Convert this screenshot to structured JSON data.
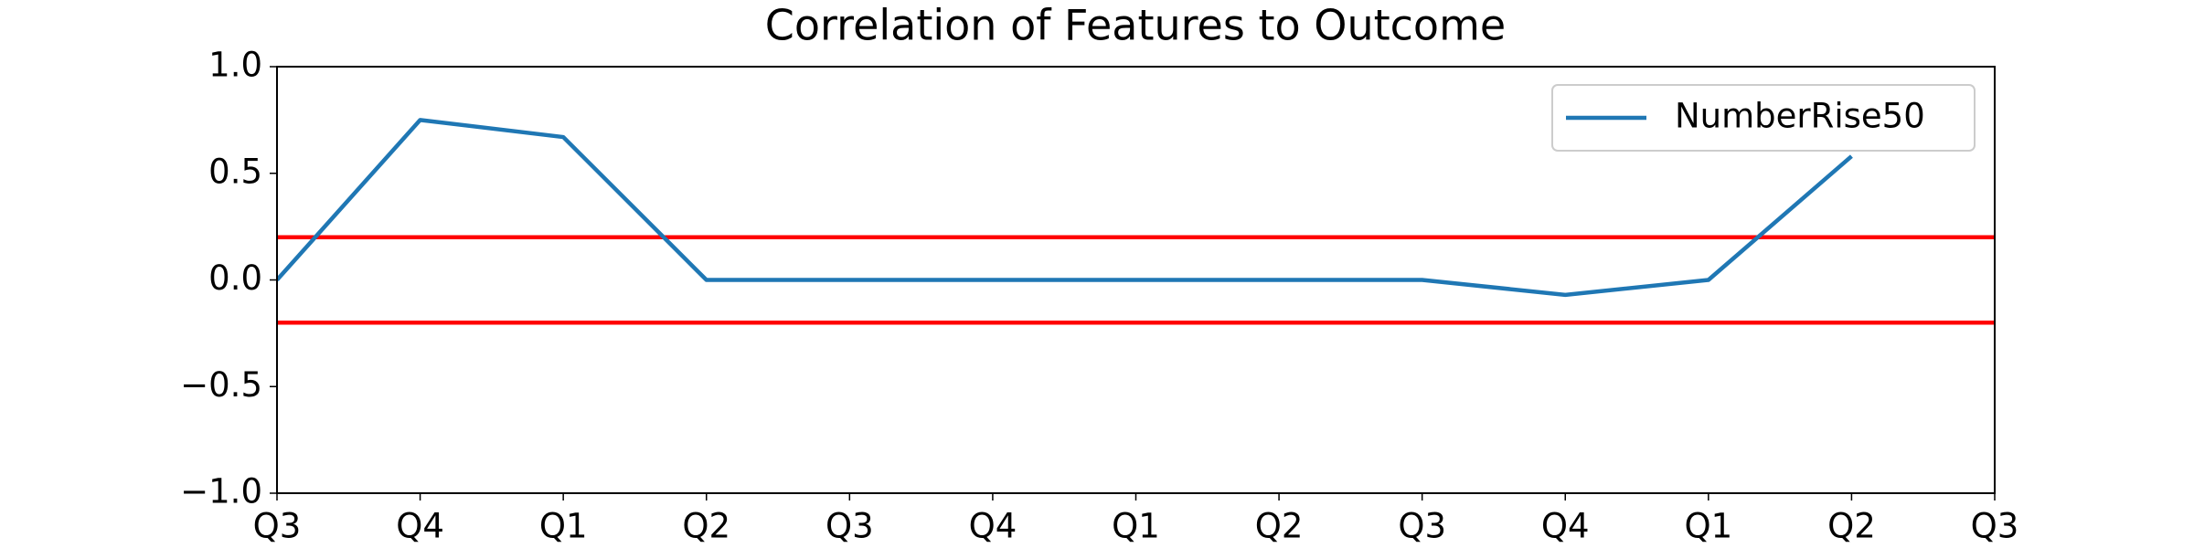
{
  "chart_data": {
    "type": "line",
    "title": "Correlation of Features to Outcome",
    "categories": [
      "Q3",
      "Q4",
      "Q1",
      "Q2",
      "Q3",
      "Q4",
      "Q1",
      "Q2",
      "Q3",
      "Q4",
      "Q1",
      "Q2",
      "Q3"
    ],
    "series": [
      {
        "name": "NumberRise50",
        "color": "#1f77b4",
        "values": [
          0,
          0.75,
          0.67,
          0,
          0,
          0,
          0,
          0,
          0,
          -0.07,
          0,
          0.58,
          null
        ]
      }
    ],
    "hlines": [
      {
        "value": 0.2,
        "color": "#ff0000"
      },
      {
        "value": -0.2,
        "color": "#ff0000"
      }
    ],
    "ylim": [
      -1,
      1
    ],
    "yticks": [
      {
        "value": -1,
        "label": "−1.0"
      },
      {
        "value": -0.5,
        "label": "−0.5"
      },
      {
        "value": 0,
        "label": "0.0"
      },
      {
        "value": 0.5,
        "label": "0.5"
      },
      {
        "value": 1,
        "label": "1.0"
      }
    ],
    "grid": false,
    "legend": "upper right"
  }
}
